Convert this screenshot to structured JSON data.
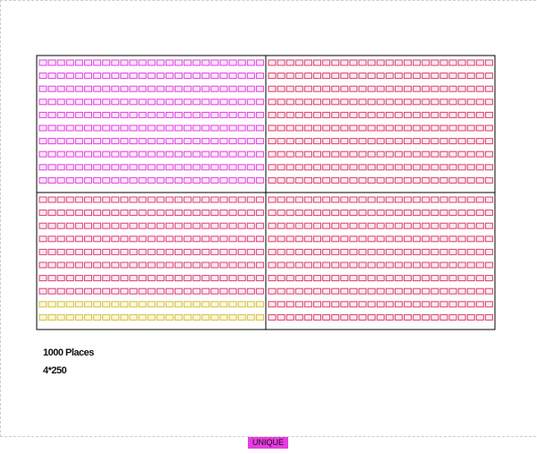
{
  "summary": {
    "places": "1000 Places",
    "blocks": "4*250"
  },
  "legend": {
    "label": "UNIQUE"
  }
}
